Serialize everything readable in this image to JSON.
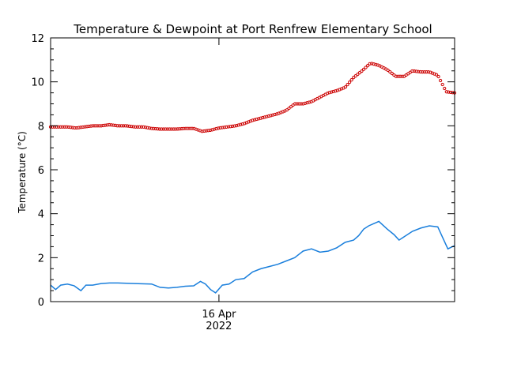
{
  "chart_data": {
    "type": "line",
    "title": "Temperature & Dewpoint at Port Renfrew Elementary School",
    "xlabel": "",
    "ylabel": "Temperature (°C)",
    "x_tick_label": {
      "date": "16 Apr",
      "year": "2022"
    },
    "xlim": [
      0,
      24
    ],
    "x_tick_at": 10,
    "ylim": [
      0,
      12
    ],
    "yticks": [
      0,
      2,
      4,
      6,
      8,
      10,
      12
    ],
    "grid": false,
    "series": [
      {
        "marker": "circle-dotted",
        "color": "#cc0000",
        "x": [
          0,
          0.5,
          1,
          1.5,
          2,
          2.5,
          3,
          3.5,
          4,
          4.5,
          5,
          5.5,
          6,
          6.5,
          7,
          7.5,
          8,
          8.5,
          9,
          9.5,
          10,
          10.5,
          11,
          11.5,
          12,
          12.5,
          13,
          13.5,
          14,
          14.5,
          15,
          15.5,
          16,
          16.5,
          17,
          17.5,
          18,
          18.5,
          19,
          19.5,
          20,
          20.5,
          21,
          21.5,
          22,
          22.5,
          23,
          23.5,
          24
        ],
        "values": [
          7.95,
          7.95,
          7.95,
          7.9,
          7.95,
          8.0,
          8.0,
          8.05,
          8.0,
          8.0,
          7.95,
          7.95,
          7.88,
          7.85,
          7.85,
          7.85,
          7.88,
          7.88,
          7.75,
          7.8,
          7.9,
          7.95,
          8.0,
          8.1,
          8.25,
          8.35,
          8.45,
          8.55,
          8.7,
          9.0,
          9.0,
          9.1,
          9.3,
          9.5,
          9.6,
          9.75,
          10.2,
          10.5,
          10.85,
          10.75,
          10.55,
          10.25,
          10.25,
          10.5,
          10.45,
          10.45,
          10.3,
          9.55,
          9.5
        ]
      },
      {
        "marker": "line",
        "color": "#1a7fdc",
        "x": [
          0,
          0.3,
          0.6,
          1,
          1.4,
          1.8,
          2.1,
          2.5,
          3,
          3.5,
          4,
          5,
          6,
          6.5,
          7,
          7.5,
          8,
          8.5,
          8.9,
          9.2,
          9.5,
          9.8,
          10.2,
          10.6,
          11,
          11.5,
          12,
          12.5,
          13,
          13.5,
          14,
          14.5,
          15,
          15.5,
          16,
          16.5,
          17,
          17.5,
          18,
          18.3,
          18.6,
          18.9,
          19.2,
          19.5,
          20,
          20.4,
          20.7,
          21,
          21.5,
          22,
          22.5,
          23,
          23.3,
          23.6,
          24
        ],
        "values": [
          0.75,
          0.55,
          0.75,
          0.8,
          0.72,
          0.5,
          0.75,
          0.75,
          0.82,
          0.85,
          0.85,
          0.82,
          0.8,
          0.65,
          0.62,
          0.65,
          0.7,
          0.72,
          0.92,
          0.8,
          0.55,
          0.4,
          0.75,
          0.8,
          1.0,
          1.05,
          1.35,
          1.5,
          1.6,
          1.7,
          1.85,
          2.0,
          2.3,
          2.4,
          2.25,
          2.3,
          2.45,
          2.7,
          2.8,
          3.0,
          3.3,
          3.45,
          3.55,
          3.65,
          3.3,
          3.05,
          2.8,
          2.95,
          3.2,
          3.35,
          3.45,
          3.4,
          2.9,
          2.4,
          2.55
        ]
      }
    ]
  }
}
